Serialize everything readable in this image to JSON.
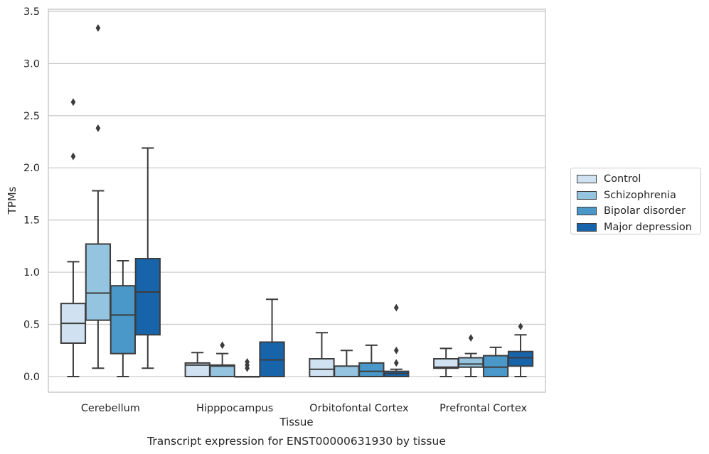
{
  "chart_data": {
    "type": "box",
    "title": "",
    "xlabel": "Tissue",
    "ylabel": "TPMs",
    "caption": "Transcript expression for ENST00000631930 by tissue",
    "categories": [
      "Cerebellum",
      "Hipppocampus",
      "Orbitofontal Cortex",
      "Prefrontal Cortex"
    ],
    "ylim": [
      -0.15,
      3.52
    ],
    "yticks": [
      0.0,
      0.5,
      1.0,
      1.5,
      2.0,
      2.5,
      3.0,
      3.5
    ],
    "ytick_labels": [
      "0.0",
      "0.5",
      "1.0",
      "1.5",
      "2.0",
      "2.5",
      "3.0",
      "3.5"
    ],
    "grid": "horizontal",
    "legend_position": "right",
    "series": [
      {
        "name": "Control",
        "color": "#d0e1f2",
        "boxes": [
          {
            "whislo": 0.0,
            "q1": 0.32,
            "med": 0.51,
            "q3": 0.7,
            "whishi": 1.1,
            "fliers": [
              2.11,
              2.63
            ]
          },
          {
            "whislo": 0.0,
            "q1": 0.0,
            "med": 0.11,
            "q3": 0.13,
            "whishi": 0.23,
            "fliers": []
          },
          {
            "whislo": 0.0,
            "q1": 0.0,
            "med": 0.07,
            "q3": 0.17,
            "whishi": 0.42,
            "fliers": []
          },
          {
            "whislo": 0.0,
            "q1": 0.08,
            "med": 0.09,
            "q3": 0.17,
            "whishi": 0.27,
            "fliers": []
          }
        ]
      },
      {
        "name": "Schizophrenia",
        "color": "#94c4df",
        "boxes": [
          {
            "whislo": 0.08,
            "q1": 0.54,
            "med": 0.8,
            "q3": 1.27,
            "whishi": 1.78,
            "fliers": [
              2.38,
              3.34
            ]
          },
          {
            "whislo": 0.0,
            "q1": 0.0,
            "med": 0.1,
            "q3": 0.11,
            "whishi": 0.22,
            "fliers": [
              0.3
            ]
          },
          {
            "whislo": 0.0,
            "q1": 0.0,
            "med": 0.0,
            "q3": 0.1,
            "whishi": 0.25,
            "fliers": []
          },
          {
            "whislo": 0.0,
            "q1": 0.09,
            "med": 0.12,
            "q3": 0.18,
            "whishi": 0.22,
            "fliers": [
              0.37
            ]
          }
        ]
      },
      {
        "name": "Bipolar disorder",
        "color": "#4a98c9",
        "boxes": [
          {
            "whislo": 0.0,
            "q1": 0.22,
            "med": 0.59,
            "q3": 0.87,
            "whishi": 1.11,
            "fliers": []
          },
          {
            "whislo": 0.0,
            "q1": 0.0,
            "med": 0.0,
            "q3": 0.0,
            "whishi": 0.0,
            "fliers": [
              0.08,
              0.11,
              0.14
            ]
          },
          {
            "whislo": 0.0,
            "q1": 0.0,
            "med": 0.05,
            "q3": 0.13,
            "whishi": 0.3,
            "fliers": []
          },
          {
            "whislo": 0.0,
            "q1": 0.0,
            "med": 0.09,
            "q3": 0.2,
            "whishi": 0.28,
            "fliers": []
          }
        ]
      },
      {
        "name": "Major depression",
        "color": "#1764ab",
        "boxes": [
          {
            "whislo": 0.08,
            "q1": 0.4,
            "med": 0.81,
            "q3": 1.13,
            "whishi": 2.19,
            "fliers": []
          },
          {
            "whislo": 0.0,
            "q1": 0.0,
            "med": 0.16,
            "q3": 0.33,
            "whishi": 0.74,
            "fliers": []
          },
          {
            "whislo": 0.0,
            "q1": 0.0,
            "med": 0.03,
            "q3": 0.05,
            "whishi": 0.07,
            "fliers": [
              0.13,
              0.25,
              0.66
            ]
          },
          {
            "whislo": 0.0,
            "q1": 0.1,
            "med": 0.18,
            "q3": 0.24,
            "whishi": 0.4,
            "fliers": [
              0.48
            ]
          }
        ]
      }
    ]
  }
}
